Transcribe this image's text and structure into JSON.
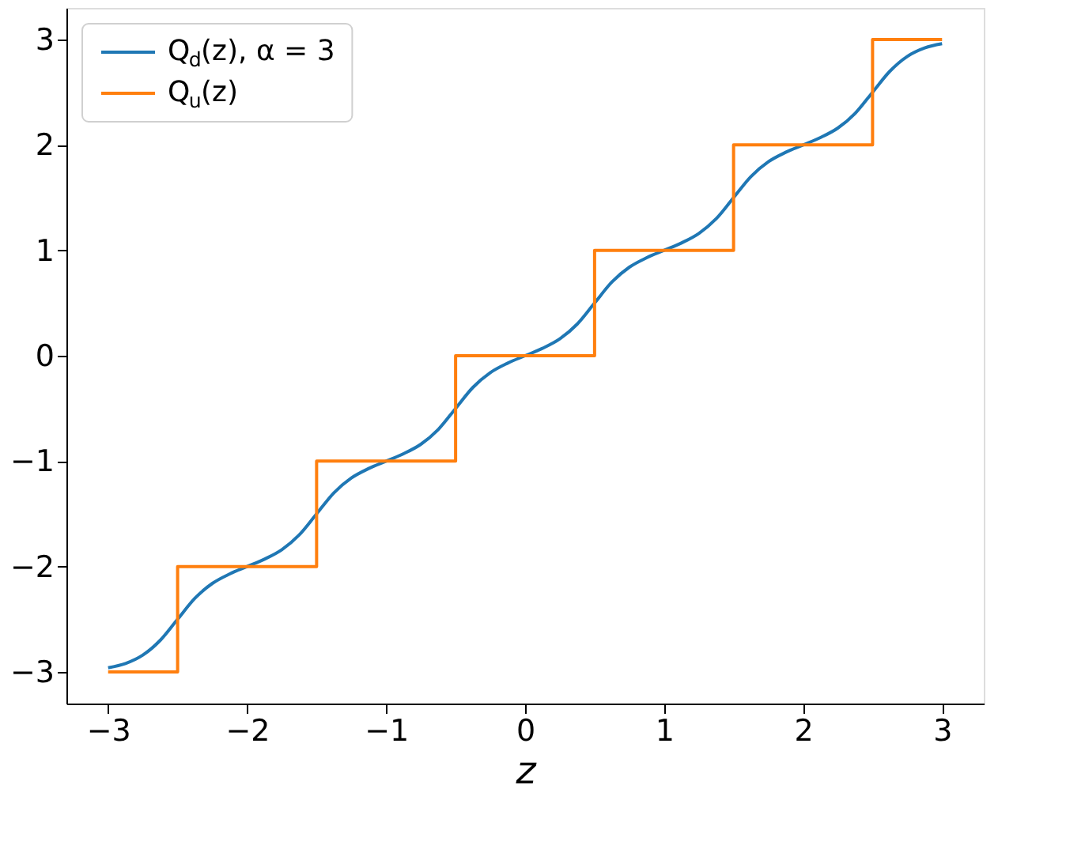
{
  "chart_data": {
    "type": "line",
    "xlabel": "z",
    "xlim": [
      -3.3,
      3.3
    ],
    "ylim": [
      -3.3,
      3.3
    ],
    "xticks": [
      -3,
      -2,
      -1,
      0,
      1,
      2,
      3
    ],
    "yticks": [
      -3,
      -2,
      -1,
      0,
      1,
      2,
      3
    ],
    "grid": false,
    "legend": "top left",
    "line_style": "solid",
    "marker": "none",
    "series": [
      {
        "name": "Q$_{d}$(z), α = 3",
        "color": "#1f77b4",
        "type": "line",
        "x": [
          -3,
          -2.875,
          -2.75,
          -2.625,
          -2.5,
          -2.375,
          -2.25,
          -2.125,
          -2,
          -1.875,
          -1.75,
          -1.625,
          -1.5,
          -1.375,
          -1.25,
          -1.125,
          -1,
          -0.875,
          -0.75,
          -0.625,
          -0.5,
          -0.375,
          -0.25,
          -0.125,
          0,
          0.125,
          0.25,
          0.375,
          0.5,
          0.625,
          0.75,
          0.875,
          1,
          1.125,
          1.25,
          1.375,
          1.5,
          1.625,
          1.75,
          1.875,
          2,
          2.125,
          2.25,
          2.375,
          2.5,
          2.625,
          2.75,
          2.875,
          3
        ],
        "values": [
          -2.96,
          -2.92,
          -2.84,
          -2.7,
          -2.5,
          -2.3,
          -2.16,
          -2.07,
          -2,
          -1.93,
          -1.84,
          -1.7,
          -1.5,
          -1.3,
          -1.16,
          -1.07,
          -1,
          -0.93,
          -0.84,
          -0.7,
          -0.5,
          -0.3,
          -0.16,
          -0.07,
          0,
          0.07,
          0.16,
          0.3,
          0.5,
          0.7,
          0.84,
          0.93,
          1,
          1.07,
          1.16,
          1.3,
          1.5,
          1.7,
          1.84,
          1.93,
          2,
          2.07,
          2.16,
          2.3,
          2.5,
          2.7,
          2.84,
          2.92,
          2.96
        ]
      },
      {
        "name": "Q$_{u}$(z)",
        "color": "#ff7f0e",
        "type": "step",
        "x": [
          -3,
          -2.5,
          -1.5,
          -0.5,
          0.5,
          1.5,
          2.5,
          3
        ],
        "values": [
          -3,
          -2,
          -1,
          0,
          1,
          2,
          3,
          3
        ]
      }
    ]
  }
}
